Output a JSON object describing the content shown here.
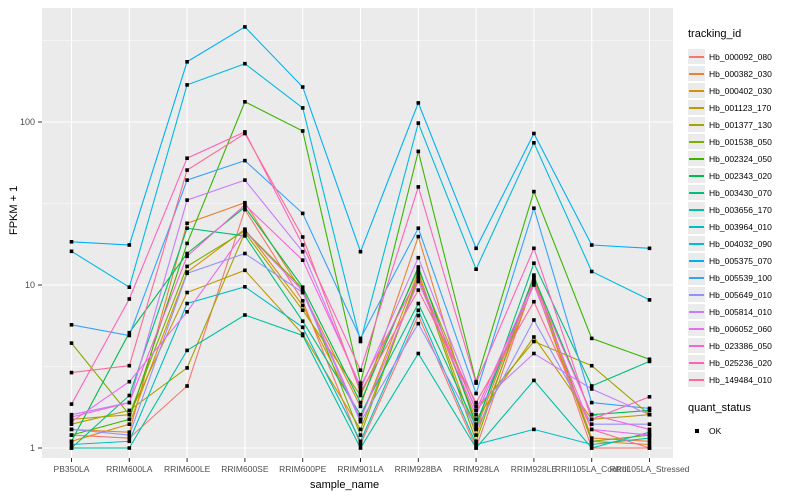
{
  "chart_data": {
    "type": "line",
    "title": "",
    "xlabel": "sample_name",
    "ylabel": "FPKM + 1",
    "y_scale": "log10",
    "ylim": [
      0.87,
      490
    ],
    "y_ticks": [
      1,
      10,
      100
    ],
    "y_minor_ticks": [
      3.162,
      31.62,
      316.2
    ],
    "grid": true,
    "panel_bg": "#EBEBEB",
    "grid_color": "#FFFFFF",
    "point_color": "#000000",
    "point_shape": "square",
    "legend_title": "tracking_id",
    "legend_position": "right",
    "quant_legend": {
      "title": "quant_status",
      "items": [
        "OK"
      ]
    },
    "categories": [
      "PB350LA",
      "RRIM600LA",
      "RRIM600LE",
      "RRIM600SE",
      "RRIM600PE",
      "RRIM901LA",
      "RRIM928BA",
      "RRIM928LA",
      "RRIM928LE",
      "RRII105LA_Control",
      "RRII105LA_Stressed"
    ],
    "series": [
      {
        "name": "Hb_000092_080",
        "color": "#F8766D",
        "values": [
          1.2,
          1.15,
          2.4,
          29,
          8.0,
          1.05,
          6.5,
          1.0,
          10.5,
          1.0,
          1.0
        ]
      },
      {
        "name": "Hb_000382_030",
        "color": "#EA8331",
        "values": [
          1.3,
          1.25,
          23.9,
          32,
          9.0,
          1.8,
          19.8,
          1.3,
          11.0,
          1.15,
          1.1
        ]
      },
      {
        "name": "Hb_000402_030",
        "color": "#D89000",
        "values": [
          1.1,
          1.4,
          12.0,
          22,
          7.5,
          1.5,
          12.0,
          1.2,
          10.3,
          1.1,
          1.05
        ]
      },
      {
        "name": "Hb_001123_170",
        "color": "#C09B00",
        "values": [
          1.5,
          1.6,
          9.0,
          12.3,
          5.0,
          1.3,
          11.0,
          1.5,
          4.8,
          1.5,
          1.6
        ]
      },
      {
        "name": "Hb_001377_130",
        "color": "#A3A500",
        "values": [
          1.4,
          1.7,
          3.1,
          21,
          7.0,
          2.1,
          12.5,
          1.7,
          4.5,
          3.2,
          1.6
        ]
      },
      {
        "name": "Hb_001538_050",
        "color": "#7CAE00",
        "values": [
          4.4,
          1.6,
          13.0,
          21.5,
          9.5,
          1.2,
          11.5,
          1.1,
          11.5,
          1.1,
          1.2
        ]
      },
      {
        "name": "Hb_002324_050",
        "color": "#39B600",
        "values": [
          1.2,
          1.5,
          18.0,
          133,
          88,
          2.5,
          66,
          2.55,
          37.4,
          4.7,
          3.5
        ]
      },
      {
        "name": "Hb_002343_020",
        "color": "#00BB4E",
        "values": [
          1.1,
          5.1,
          15.6,
          30,
          9.7,
          1.9,
          12.9,
          1.4,
          11.2,
          1.6,
          1.7
        ]
      },
      {
        "name": "Hb_003430_070",
        "color": "#00BF7D",
        "values": [
          1.0,
          2.1,
          22.3,
          20,
          6.0,
          1.6,
          7.7,
          1.35,
          13.6,
          2.4,
          3.4
        ]
      },
      {
        "name": "Hb_003656_170",
        "color": "#00C1A3",
        "values": [
          1.0,
          1.0,
          3.97,
          6.55,
          4.9,
          1.0,
          3.8,
          1.0,
          2.6,
          1.0,
          1.25
        ]
      },
      {
        "name": "Hb_003964_010",
        "color": "#00BFC4",
        "values": [
          1.05,
          1.1,
          7.7,
          9.75,
          5.5,
          1.1,
          7.0,
          1.05,
          1.3,
          1.05,
          1.15
        ]
      },
      {
        "name": "Hb_004032_090",
        "color": "#00BAE0",
        "values": [
          16.1,
          9.7,
          169,
          228,
          122,
          4.5,
          98.5,
          12.5,
          74.5,
          12.1,
          8.1
        ]
      },
      {
        "name": "Hb_005375_070",
        "color": "#00B0F6",
        "values": [
          18.4,
          17.6,
          234,
          383,
          164,
          16.0,
          131,
          16.8,
          85,
          17.6,
          16.8
        ]
      },
      {
        "name": "Hb_005539_100",
        "color": "#35A2FF",
        "values": [
          5.7,
          4.9,
          44,
          58,
          27.5,
          4.7,
          22.3,
          2.16,
          29.6,
          1.9,
          1.75
        ]
      },
      {
        "name": "Hb_005649_010",
        "color": "#9590FF",
        "values": [
          1.3,
          1.2,
          11.8,
          15.6,
          9.0,
          1.45,
          5.8,
          1.3,
          6.1,
          1.4,
          1.4
        ]
      },
      {
        "name": "Hb_005814_010",
        "color": "#C77CFF",
        "values": [
          1.6,
          1.9,
          33.2,
          44,
          16.0,
          2.3,
          14.7,
          1.8,
          3.8,
          2.3,
          1.6
        ]
      },
      {
        "name": "Hb_006052_060",
        "color": "#E76BF3",
        "values": [
          1.45,
          2.55,
          6.85,
          21.3,
          9.2,
          1.5,
          10.5,
          1.6,
          10.0,
          1.3,
          1.2
        ]
      },
      {
        "name": "Hb_023386_050",
        "color": "#FA62DB",
        "values": [
          1.55,
          1.9,
          15.0,
          31,
          14.2,
          2.4,
          11.2,
          1.7,
          10.5,
          1.6,
          1.3
        ]
      },
      {
        "name": "Hb_025236_020",
        "color": "#FF62BC",
        "values": [
          1.86,
          8.2,
          60,
          87,
          17.6,
          3.0,
          40,
          2.5,
          16.8,
          1.5,
          2.06
        ]
      },
      {
        "name": "Hb_149484_010",
        "color": "#FF6A98",
        "values": [
          2.9,
          3.2,
          50.7,
          85,
          19.7,
          2.2,
          9.3,
          1.9,
          7.9,
          1.3,
          1.0
        ]
      }
    ]
  }
}
